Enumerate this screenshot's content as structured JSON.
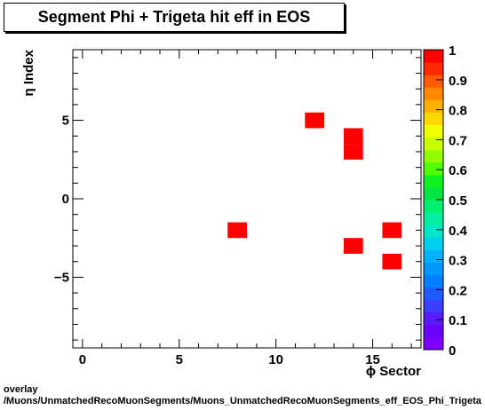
{
  "title": "Segment Phi + Trigeta hit eff in EOS",
  "footer": {
    "line1": "overlay",
    "line2": "/Muons/UnmatchedRecoMuonSegments/Muons_UnmatchedRecoMuonSegments_eff_EOS_Phi_Trigeta"
  },
  "chart_data": {
    "type": "heatmap",
    "title": "Segment Phi + Trigeta hit eff in EOS",
    "xlabel": "ϕ Sector",
    "ylabel": "η Index",
    "xlim": [
      -0.5,
      17.5
    ],
    "ylim": [
      -9.5,
      9.5
    ],
    "x_ticks": [
      0,
      5,
      10,
      15
    ],
    "y_ticks": [
      -5,
      0,
      5
    ],
    "z_range": [
      0,
      1
    ],
    "z_ticks": [
      "0",
      "0.1",
      "0.2",
      "0.3",
      "0.4",
      "0.5",
      "0.6",
      "0.7",
      "0.8",
      "0.9",
      "1"
    ],
    "colors": {
      "palette": [
        "#7f00ff",
        "#6a00ff",
        "#5a1aff",
        "#3d3dff",
        "#1f5cff",
        "#0080ff",
        "#0099ff",
        "#00b3ff",
        "#00d0f0",
        "#00e6c8",
        "#00f0a0",
        "#00f070",
        "#00e640",
        "#10f020",
        "#50ff00",
        "#90ff00",
        "#c8ff00",
        "#f0ff00",
        "#ffd800",
        "#ffb000",
        "#ff8800",
        "#ff5a00",
        "#ff2800",
        "#ff0000"
      ],
      "frame": "#000000"
    },
    "cells": [
      {
        "x": 8,
        "y": -2,
        "value": 1
      },
      {
        "x": 12,
        "y": 5,
        "value": 1
      },
      {
        "x": 14,
        "y": 4,
        "value": 1
      },
      {
        "x": 14,
        "y": 3,
        "value": 1
      },
      {
        "x": 14,
        "y": -3,
        "value": 1
      },
      {
        "x": 16,
        "y": -2,
        "value": 1
      },
      {
        "x": 16,
        "y": -4,
        "value": 1
      }
    ]
  }
}
